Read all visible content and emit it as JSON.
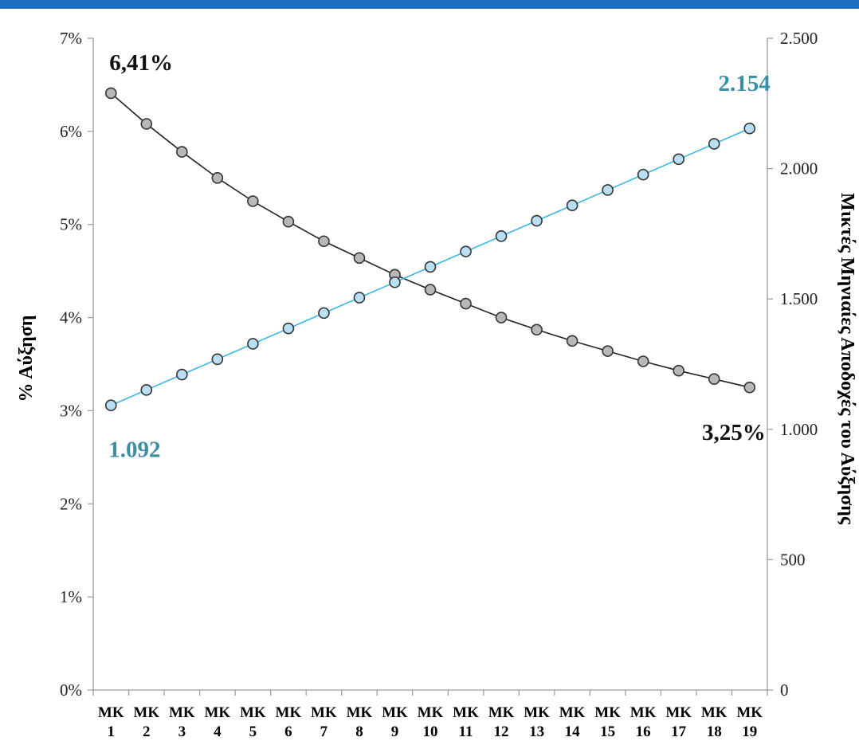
{
  "chart_data": {
    "type": "line",
    "categories": [
      "ΜΚ 1",
      "ΜΚ 2",
      "ΜΚ 3",
      "ΜΚ 4",
      "ΜΚ 5",
      "ΜΚ 6",
      "ΜΚ 7",
      "ΜΚ 8",
      "ΜΚ 9",
      "ΜΚ 10",
      "ΜΚ 11",
      "ΜΚ 12",
      "ΜΚ 13",
      "ΜΚ 14",
      "ΜΚ 15",
      "ΜΚ 16",
      "ΜΚ 17",
      "ΜΚ 18",
      "ΜΚ 19"
    ],
    "category_lines": [
      [
        "ΜΚ",
        "1"
      ],
      [
        "ΜΚ",
        "2"
      ],
      [
        "ΜΚ",
        "3"
      ],
      [
        "ΜΚ",
        "4"
      ],
      [
        "ΜΚ",
        "5"
      ],
      [
        "ΜΚ",
        "6"
      ],
      [
        "ΜΚ",
        "7"
      ],
      [
        "ΜΚ",
        "8"
      ],
      [
        "ΜΚ",
        "9"
      ],
      [
        "ΜΚ",
        "10"
      ],
      [
        "ΜΚ",
        "11"
      ],
      [
        "ΜΚ",
        "12"
      ],
      [
        "ΜΚ",
        "13"
      ],
      [
        "ΜΚ",
        "14"
      ],
      [
        "ΜΚ",
        "15"
      ],
      [
        "ΜΚ",
        "16"
      ],
      [
        "ΜΚ",
        "17"
      ],
      [
        "ΜΚ",
        "18"
      ],
      [
        "ΜΚ",
        "19"
      ]
    ],
    "series": [
      {
        "axis": "left",
        "color": "#222222",
        "marker_fill": "#b8b8b8",
        "values": [
          6.41,
          6.08,
          5.78,
          5.5,
          5.25,
          5.03,
          4.82,
          4.64,
          4.46,
          4.3,
          4.15,
          4.0,
          3.87,
          3.75,
          3.64,
          3.53,
          3.43,
          3.34,
          3.25
        ]
      },
      {
        "axis": "right",
        "color": "#39b6e4",
        "marker_fill": "#b8dff3",
        "values": [
          1092,
          1151,
          1210,
          1269,
          1328,
          1387,
          1446,
          1505,
          1564,
          1623,
          1682,
          1741,
          1800,
          1859,
          1918,
          1977,
          2036,
          2095,
          2154
        ]
      }
    ],
    "y_left": {
      "label": "% Αύξηση",
      "ylim": [
        0,
        7
      ],
      "tick_values": [
        0,
        1,
        2,
        3,
        4,
        5,
        6,
        7
      ],
      "tick_labels": [
        "0%",
        "1%",
        "2%",
        "3%",
        "4%",
        "5%",
        "6%",
        "7%"
      ]
    },
    "y_right": {
      "label": "Μικτές Μηνιαίες Αποδοχές του Αύξησης",
      "ylim": [
        0,
        2500
      ],
      "tick_values": [
        0,
        500,
        1000,
        1500,
        2000,
        2500
      ],
      "tick_labels": [
        "0",
        "500",
        "1.000",
        "1.500",
        "2.000",
        "2.500"
      ]
    },
    "annotations": [
      {
        "text": "6,41%",
        "series": 0,
        "point": "first",
        "color": "#111111"
      },
      {
        "text": "3,25%",
        "series": 0,
        "point": "last",
        "color": "#111111"
      },
      {
        "text": "1.092",
        "series": 1,
        "point": "first",
        "color": "#3a8ea6"
      },
      {
        "text": "2.154",
        "series": 1,
        "point": "last",
        "color": "#3a8ea6"
      }
    ],
    "grid": false,
    "legend": "none",
    "colors": {
      "accent_bar": "#1c6ec0",
      "axis": "#9a9a9a"
    }
  }
}
